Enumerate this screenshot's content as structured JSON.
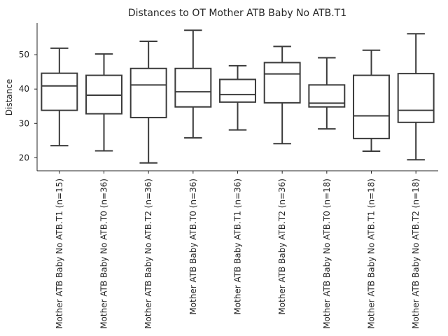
{
  "chart_data": {
    "type": "box",
    "title": "Distances to OT Mother ATB Baby No ATB.T1",
    "xlabel": "",
    "ylabel": "Distance",
    "ylim": [
      16.2,
      59.2
    ],
    "yticks": [
      20,
      30,
      40,
      50
    ],
    "grid": false,
    "categories": [
      "Mother ATB Baby No ATB.T1 (n=15)",
      "Mother ATB Baby No ATB.T0 (n=36)",
      "Mother ATB Baby No ATB.T2 (n=36)",
      "Mother ATB Baby ATB.T0 (n=36)",
      "Mother ATB Baby ATB.T1 (n=36)",
      "Mother ATB Baby ATB.T2 (n=36)",
      "Mother ATB Baby No ATB.T0 (n=18)",
      "Mother ATB Baby No ATB.T1 (n=18)",
      "Mother ATB Baby No ATB.T2 (n=18)"
    ],
    "boxes": [
      {
        "whisker_low": 23.5,
        "q1": 33.8,
        "median": 40.9,
        "q3": 44.6,
        "whisker_high": 51.9
      },
      {
        "whisker_low": 22.0,
        "q1": 32.8,
        "median": 38.2,
        "q3": 44.0,
        "whisker_high": 50.2
      },
      {
        "whisker_low": 18.5,
        "q1": 31.7,
        "median": 41.2,
        "q3": 46.0,
        "whisker_high": 53.9
      },
      {
        "whisker_low": 25.8,
        "q1": 34.8,
        "median": 39.2,
        "q3": 46.0,
        "whisker_high": 57.1
      },
      {
        "whisker_low": 28.1,
        "q1": 36.2,
        "median": 38.4,
        "q3": 42.8,
        "whisker_high": 46.8
      },
      {
        "whisker_low": 24.1,
        "q1": 36.0,
        "median": 44.4,
        "q3": 47.7,
        "whisker_high": 52.4
      },
      {
        "whisker_low": 28.4,
        "q1": 34.8,
        "median": 35.9,
        "q3": 41.2,
        "whisker_high": 49.1
      },
      {
        "whisker_low": 21.9,
        "q1": 25.6,
        "median": 32.2,
        "q3": 44.0,
        "whisker_high": 51.3
      },
      {
        "whisker_low": 19.4,
        "q1": 30.3,
        "median": 33.8,
        "q3": 44.5,
        "whisker_high": 56.1
      }
    ],
    "line_color": "#3b3b3b",
    "box_fill": "#ffffff"
  }
}
